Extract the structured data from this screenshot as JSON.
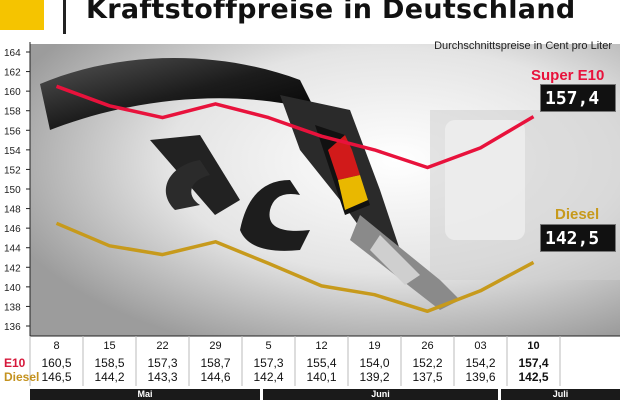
{
  "title": "Kraftstoffpreise in Deutschland",
  "subtitle": "Durchschnittspreise in Cent pro Liter",
  "colors": {
    "e10": "#e8123c",
    "diesel": "#c79a1c",
    "accent": "#f5c400"
  },
  "icons": {
    "photo": "fuel-nozzle-photo"
  },
  "legend": {
    "e10_name": "Super E10",
    "e10_display": "157,4",
    "diesel_name": "Diesel",
    "diesel_display": "142,5"
  },
  "table": {
    "e10_label": "E10",
    "diesel_label": "Diesel",
    "months": [
      "Mai",
      "Juni",
      "Juli"
    ]
  },
  "chart_data": {
    "type": "line",
    "title": "Kraftstoffpreise in Deutschland",
    "subtitle": "Durchschnittspreise in Cent pro Liter",
    "xlabel": "",
    "ylabel": "",
    "ylim": [
      136,
      164
    ],
    "yticks": [
      136,
      138,
      140,
      142,
      144,
      146,
      148,
      150,
      152,
      154,
      156,
      158,
      160,
      162,
      164
    ],
    "grid": false,
    "legend_placement": "right",
    "x": [
      "8",
      "15",
      "22",
      "29",
      "5",
      "12",
      "19",
      "26",
      "03",
      "10"
    ],
    "series": [
      {
        "name": "Super E10",
        "color": "#e8123c",
        "values": [
          160.5,
          158.5,
          157.3,
          158.7,
          157.3,
          155.4,
          154.0,
          152.2,
          154.2,
          157.4
        ],
        "labels": [
          "160,5",
          "158,5",
          "157,3",
          "158,7",
          "157,3",
          "155,4",
          "154,0",
          "152,2",
          "154,2",
          "157,4"
        ]
      },
      {
        "name": "Diesel",
        "color": "#c79a1c",
        "values": [
          146.5,
          144.2,
          143.3,
          144.6,
          142.4,
          140.1,
          139.2,
          137.5,
          139.6,
          142.5
        ],
        "labels": [
          "146,5",
          "144,2",
          "143,3",
          "144,6",
          "142,4",
          "140,1",
          "139,2",
          "137,5",
          "139,6",
          "142,5"
        ]
      }
    ]
  }
}
